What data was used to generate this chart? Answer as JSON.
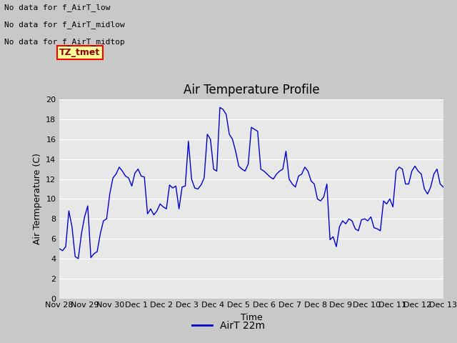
{
  "title": "Air Temperature Profile",
  "ylabel": "Air Temperature (C)",
  "ylabel_display": "Air Termperature (C)",
  "xlabel": "Time",
  "ylim": [
    0,
    20
  ],
  "yticks": [
    0,
    2,
    4,
    6,
    8,
    10,
    12,
    14,
    16,
    18,
    20
  ],
  "legend_label": "AirT 22m",
  "line_color": "#0000cc",
  "fig_bg_color": "#c8c8c8",
  "plot_bg_color": "#e8e8e8",
  "annotations": [
    "No data for f_AirT_low",
    "No data for f_AirT_midlow",
    "No data for f_AirT_midtop"
  ],
  "tz_label": "TZ_tmet",
  "xtick_labels": [
    "Nov 28",
    "Nov 29",
    "Nov 30",
    "Dec 1",
    "Dec 2",
    "Dec 3",
    "Dec 4",
    "Dec 5",
    "Dec 6",
    "Dec 7",
    "Dec 8",
    "Dec 9",
    "Dec 10",
    "Dec 11",
    "Dec 12",
    "Dec 13"
  ],
  "temperatures": [
    5.0,
    4.8,
    5.2,
    8.8,
    7.2,
    4.2,
    4.0,
    6.5,
    8.2,
    9.3,
    4.1,
    4.5,
    4.7,
    6.5,
    7.8,
    8.0,
    10.5,
    12.1,
    12.5,
    13.2,
    12.8,
    12.3,
    12.1,
    11.3,
    12.6,
    13.0,
    12.3,
    12.2,
    8.5,
    9.0,
    8.4,
    8.8,
    9.5,
    9.2,
    9.0,
    11.4,
    11.1,
    11.3,
    9.0,
    11.2,
    11.3,
    15.8,
    12.0,
    11.1,
    11.0,
    11.4,
    12.1,
    16.5,
    16.0,
    13.0,
    12.8,
    19.2,
    19.0,
    18.5,
    16.5,
    16.0,
    14.8,
    13.3,
    13.0,
    12.8,
    13.5,
    17.2,
    17.0,
    16.8,
    13.0,
    12.8,
    12.5,
    12.2,
    12.0,
    12.5,
    12.8,
    13.0,
    14.8,
    12.0,
    11.5,
    11.2,
    12.3,
    12.5,
    13.2,
    12.8,
    11.8,
    11.5,
    10.0,
    9.8,
    10.2,
    11.5,
    5.9,
    6.2,
    5.2,
    7.2,
    7.8,
    7.5,
    8.0,
    7.8,
    7.0,
    6.8,
    7.9,
    8.0,
    7.8,
    8.2,
    7.1,
    7.0,
    6.8,
    9.8,
    9.5,
    10.0,
    9.2,
    12.8,
    13.2,
    13.0,
    11.5,
    11.5,
    12.8,
    13.3,
    12.8,
    12.5,
    11.0,
    10.5,
    11.2,
    12.5,
    13.0,
    11.5,
    11.2
  ]
}
